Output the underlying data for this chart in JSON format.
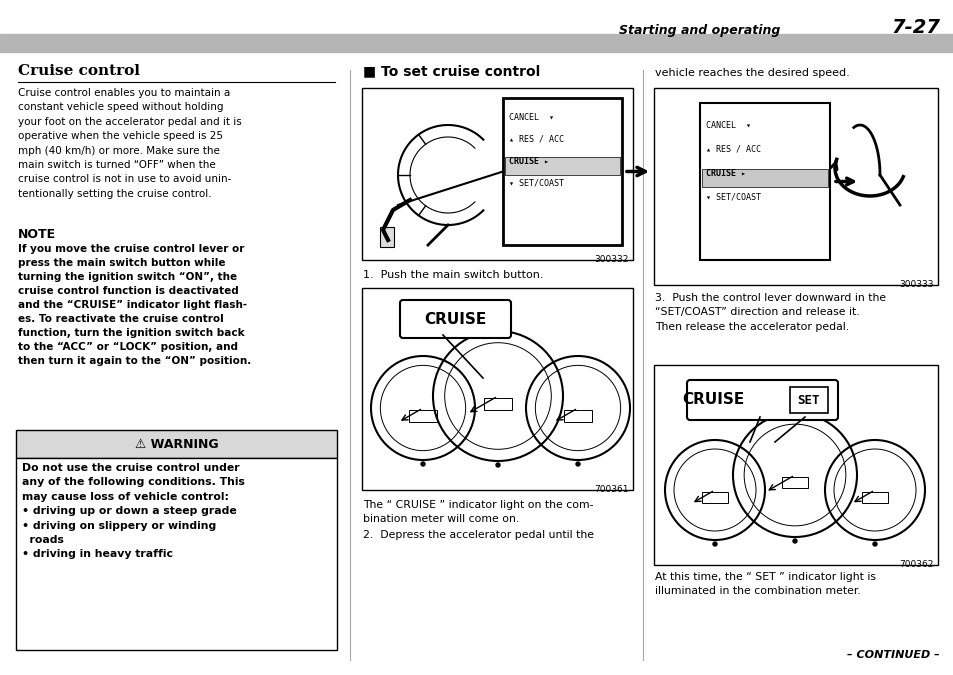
{
  "page_bg": "#ffffff",
  "header_bar_color": "#b0b0b0",
  "header_text": "Starting and operating",
  "header_page": "7-27",
  "col1_title": "Cruise control",
  "col1_body": "Cruise control enables you to maintain a\nconstant vehicle speed without holding\nyour foot on the accelerator pedal and it is\noperative when the vehicle speed is 25\nmph (40 km/h) or more. Make sure the\nmain switch is turned “OFF” when the\ncruise control is not in use to avoid unin-\ntentionally setting the cruise control.",
  "note_title": "NOTE",
  "note_body": "If you move the cruise control lever or\npress the main switch button while\nturning the ignition switch “ON”, the\ncruise control function is deactivated\nand the “CRUISE” indicator light flash-\nes. To reactivate the cruise control\nfunction, turn the ignition switch back\nto the “ACC” or “LOCK” position, and\nthen turn it again to the “ON” position.",
  "warning_title": "⚠ WARNING",
  "warning_body": "Do not use the cruise control under\nany of the following conditions. This\nmay cause loss of vehicle control:\n• driving up or down a steep grade\n• driving on slippery or winding\n  roads\n• driving in heavy traffic",
  "col2_title": "■ To set cruise control",
  "img1_code": "300332",
  "step1_text": "1.  Push the main switch button.",
  "img2_code": "700361",
  "step2a_text": "The “ CRUISE ” indicator light on the com-\nbination meter will come on.",
  "step2b_text": "2.  Depress the accelerator pedal until the",
  "col3_intro": "vehicle reaches the desired speed.",
  "img3_code": "300333",
  "step3_text": "3.  Push the control lever downward in the\n“SET/COAST” direction and release it.\nThen release the accelerator pedal.",
  "img4_code": "700362",
  "step4_text": "At this time, the “ SET ” indicator light is\nilluminated in the combination meter.",
  "continued_text": "– CONTINUED –"
}
